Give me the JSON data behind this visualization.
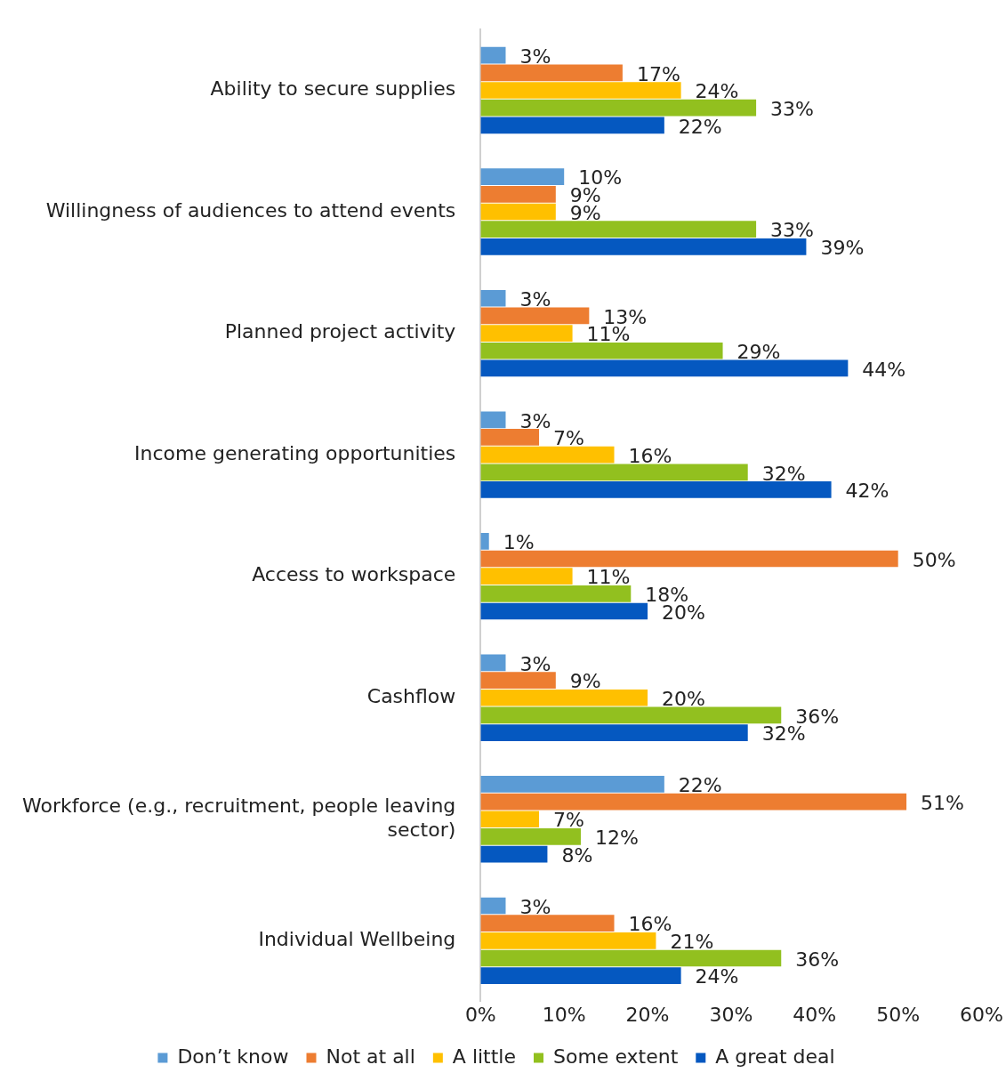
{
  "chart_data": {
    "type": "bar",
    "orientation": "horizontal",
    "categories": [
      "Ability to secure supplies",
      "Willingness of audiences to attend events",
      "Planned project activity",
      "Income generating opportunities",
      "Access to workspace",
      "Cashflow",
      "Workforce (e.g., recruitment, people leaving sector)",
      "Individual Wellbeing"
    ],
    "series": [
      {
        "name": "Don’t know",
        "color": "#5b9bd5",
        "values": [
          3,
          10,
          3,
          3,
          1,
          3,
          22,
          3
        ],
        "value_labels": [
          "3%",
          "10%",
          "3%",
          "3%",
          "1%",
          "3%",
          "22%",
          "3%"
        ]
      },
      {
        "name": "Not at all",
        "color": "#ed7d31",
        "values": [
          17,
          9,
          13,
          7,
          50,
          9,
          51,
          16
        ],
        "value_labels": [
          "17%",
          "9%",
          "13%",
          "7%",
          "50%",
          "9%",
          "51%",
          "16%"
        ]
      },
      {
        "name": "A little",
        "color": "#ffc000",
        "values": [
          24,
          9,
          11,
          16,
          11,
          20,
          7,
          21
        ],
        "value_labels": [
          "24%",
          "9%",
          "11%",
          "16%",
          "11%",
          "20%",
          "7%",
          "21%"
        ]
      },
      {
        "name": "Some extent",
        "color": "#92c01f",
        "values": [
          33,
          33,
          29,
          32,
          18,
          36,
          12,
          36
        ],
        "value_labels": [
          "33%",
          "33%",
          "29%",
          "32%",
          "18%",
          "36%",
          "12%",
          "36%"
        ]
      },
      {
        "name": "A great deal",
        "color": "#0558c0",
        "values": [
          22,
          39,
          44,
          42,
          20,
          32,
          8,
          24
        ],
        "value_labels": [
          "22%",
          "39%",
          "44%",
          "42%",
          "20%",
          "32%",
          "8%",
          "24%"
        ]
      }
    ],
    "xlim": [
      0,
      60
    ],
    "xticks": [
      {
        "value": 0,
        "label": "0%"
      },
      {
        "value": 10,
        "label": "10%"
      },
      {
        "value": 20,
        "label": "20%"
      },
      {
        "value": 30,
        "label": "30%"
      },
      {
        "value": 40,
        "label": "40%"
      },
      {
        "value": 50,
        "label": "50%"
      },
      {
        "value": 60,
        "label": "60%"
      }
    ],
    "grid": false,
    "legend": "bottom"
  }
}
